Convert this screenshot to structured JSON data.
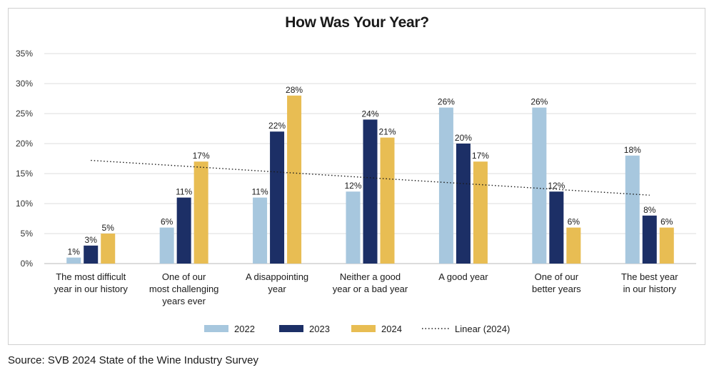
{
  "source": "Source: SVB 2024 State of the Wine Industry Survey",
  "chart_data": {
    "type": "bar",
    "title": "How Was Your Year?",
    "categories": [
      [
        "The most difficult",
        "year in our history"
      ],
      [
        "One of our",
        "most challenging",
        "years ever"
      ],
      [
        "A disappointing",
        "year"
      ],
      [
        "Neither a good",
        "year or a bad year"
      ],
      [
        "A good year"
      ],
      [
        "One of our",
        "better years"
      ],
      [
        "The best year",
        "in our history"
      ]
    ],
    "series": [
      {
        "name": "2022",
        "color": "#a7c7de",
        "values": [
          1,
          6,
          11,
          12,
          26,
          26,
          18
        ],
        "labels": [
          "1%",
          "6%",
          "11%",
          "12%",
          "26%",
          "26%",
          "18%"
        ]
      },
      {
        "name": "2023",
        "color": "#1c2f66",
        "values": [
          3,
          11,
          22,
          24,
          20,
          12,
          8
        ],
        "labels": [
          "3%",
          "11%",
          "22%",
          "24%",
          "20%",
          "12%",
          "8%"
        ]
      },
      {
        "name": "2024",
        "color": "#e8bd53",
        "values": [
          5,
          17,
          28,
          21,
          17,
          6,
          6
        ],
        "labels": [
          "5%",
          "17%",
          "28%",
          "21%",
          "17%",
          "6%",
          "6%"
        ]
      }
    ],
    "trendline": {
      "name": "Linear (2024)",
      "start": 17.2,
      "end": 11.4
    },
    "ylim": [
      0,
      35
    ],
    "yticks": [
      {
        "value": 0,
        "label": "0%"
      },
      {
        "value": 5,
        "label": "5%"
      },
      {
        "value": 10,
        "label": "10%"
      },
      {
        "value": 15,
        "label": "15%"
      },
      {
        "value": 20,
        "label": "20%"
      },
      {
        "value": 25,
        "label": "25%"
      },
      {
        "value": 30,
        "label": "30%"
      },
      {
        "value": 35,
        "label": "35%"
      }
    ],
    "xlabel": "",
    "ylabel": "",
    "grid": true,
    "legend_position": "bottom"
  }
}
